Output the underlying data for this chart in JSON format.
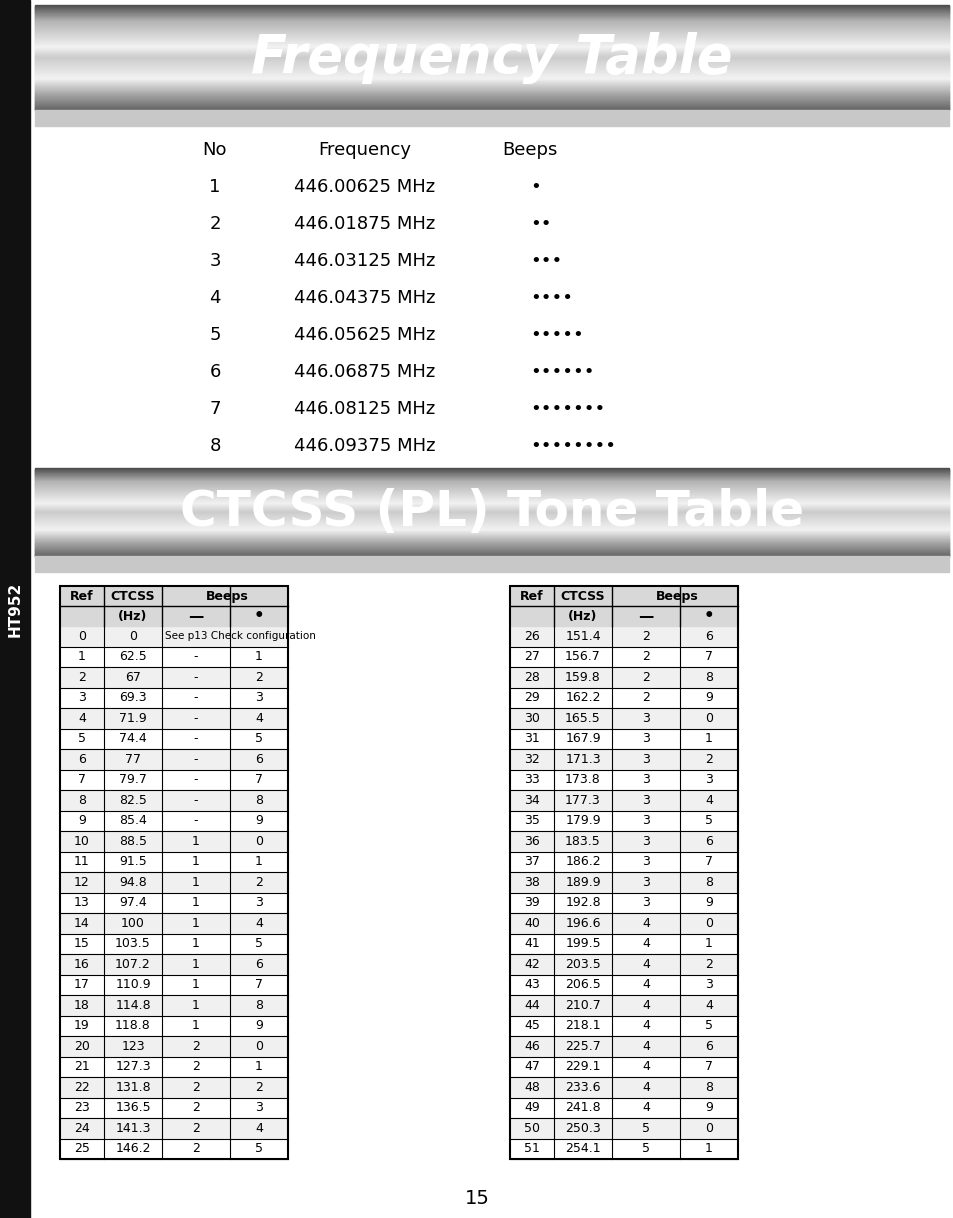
{
  "title1": "Frequency Table",
  "title2": "CTCSS (PL) Tone Table",
  "page_number": "15",
  "bg_color": "#ffffff",
  "sidebar_color": "#111111",
  "sidebar_text": "HT952",
  "freq_table": {
    "headers": [
      "No",
      "Frequency",
      "Beeps"
    ],
    "rows": [
      [
        "1",
        "446.00625 MHz",
        "•"
      ],
      [
        "2",
        "446.01875 MHz",
        "••"
      ],
      [
        "3",
        "446.03125 MHz",
        "•••"
      ],
      [
        "4",
        "446.04375 MHz",
        "••••"
      ],
      [
        "5",
        "446.05625 MHz",
        "•••••"
      ],
      [
        "6",
        "446.06875 MHz",
        "••••••"
      ],
      [
        "7",
        "446.08125 MHz",
        "•••••••"
      ],
      [
        "8",
        "446.09375 MHz",
        "••••••••"
      ]
    ]
  },
  "ctcss_left": {
    "rows": [
      [
        "0",
        "0",
        "See p13 Check configuration",
        ""
      ],
      [
        "1",
        "62.5",
        "-",
        "1"
      ],
      [
        "2",
        "67",
        "-",
        "2"
      ],
      [
        "3",
        "69.3",
        "-",
        "3"
      ],
      [
        "4",
        "71.9",
        "-",
        "4"
      ],
      [
        "5",
        "74.4",
        "-",
        "5"
      ],
      [
        "6",
        "77",
        "-",
        "6"
      ],
      [
        "7",
        "79.7",
        "-",
        "7"
      ],
      [
        "8",
        "82.5",
        "-",
        "8"
      ],
      [
        "9",
        "85.4",
        "-",
        "9"
      ],
      [
        "10",
        "88.5",
        "1",
        "0"
      ],
      [
        "11",
        "91.5",
        "1",
        "1"
      ],
      [
        "12",
        "94.8",
        "1",
        "2"
      ],
      [
        "13",
        "97.4",
        "1",
        "3"
      ],
      [
        "14",
        "100",
        "1",
        "4"
      ],
      [
        "15",
        "103.5",
        "1",
        "5"
      ],
      [
        "16",
        "107.2",
        "1",
        "6"
      ],
      [
        "17",
        "110.9",
        "1",
        "7"
      ],
      [
        "18",
        "114.8",
        "1",
        "8"
      ],
      [
        "19",
        "118.8",
        "1",
        "9"
      ],
      [
        "20",
        "123",
        "2",
        "0"
      ],
      [
        "21",
        "127.3",
        "2",
        "1"
      ],
      [
        "22",
        "131.8",
        "2",
        "2"
      ],
      [
        "23",
        "136.5",
        "2",
        "3"
      ],
      [
        "24",
        "141.3",
        "2",
        "4"
      ],
      [
        "25",
        "146.2",
        "2",
        "5"
      ]
    ]
  },
  "ctcss_right": {
    "rows": [
      [
        "26",
        "151.4",
        "2",
        "6"
      ],
      [
        "27",
        "156.7",
        "2",
        "7"
      ],
      [
        "28",
        "159.8",
        "2",
        "8"
      ],
      [
        "29",
        "162.2",
        "2",
        "9"
      ],
      [
        "30",
        "165.5",
        "3",
        "0"
      ],
      [
        "31",
        "167.9",
        "3",
        "1"
      ],
      [
        "32",
        "171.3",
        "3",
        "2"
      ],
      [
        "33",
        "173.8",
        "3",
        "3"
      ],
      [
        "34",
        "177.3",
        "3",
        "4"
      ],
      [
        "35",
        "179.9",
        "3",
        "5"
      ],
      [
        "36",
        "183.5",
        "3",
        "6"
      ],
      [
        "37",
        "186.2",
        "3",
        "7"
      ],
      [
        "38",
        "189.9",
        "3",
        "8"
      ],
      [
        "39",
        "192.8",
        "3",
        "9"
      ],
      [
        "40",
        "196.6",
        "4",
        "0"
      ],
      [
        "41",
        "199.5",
        "4",
        "1"
      ],
      [
        "42",
        "203.5",
        "4",
        "2"
      ],
      [
        "43",
        "206.5",
        "4",
        "3"
      ],
      [
        "44",
        "210.7",
        "4",
        "4"
      ],
      [
        "45",
        "218.1",
        "4",
        "5"
      ],
      [
        "46",
        "225.7",
        "4",
        "6"
      ],
      [
        "47",
        "229.1",
        "4",
        "7"
      ],
      [
        "48",
        "233.6",
        "4",
        "8"
      ],
      [
        "49",
        "241.8",
        "4",
        "9"
      ],
      [
        "50",
        "250.3",
        "5",
        "0"
      ],
      [
        "51",
        "254.1",
        "5",
        "1"
      ]
    ]
  }
}
